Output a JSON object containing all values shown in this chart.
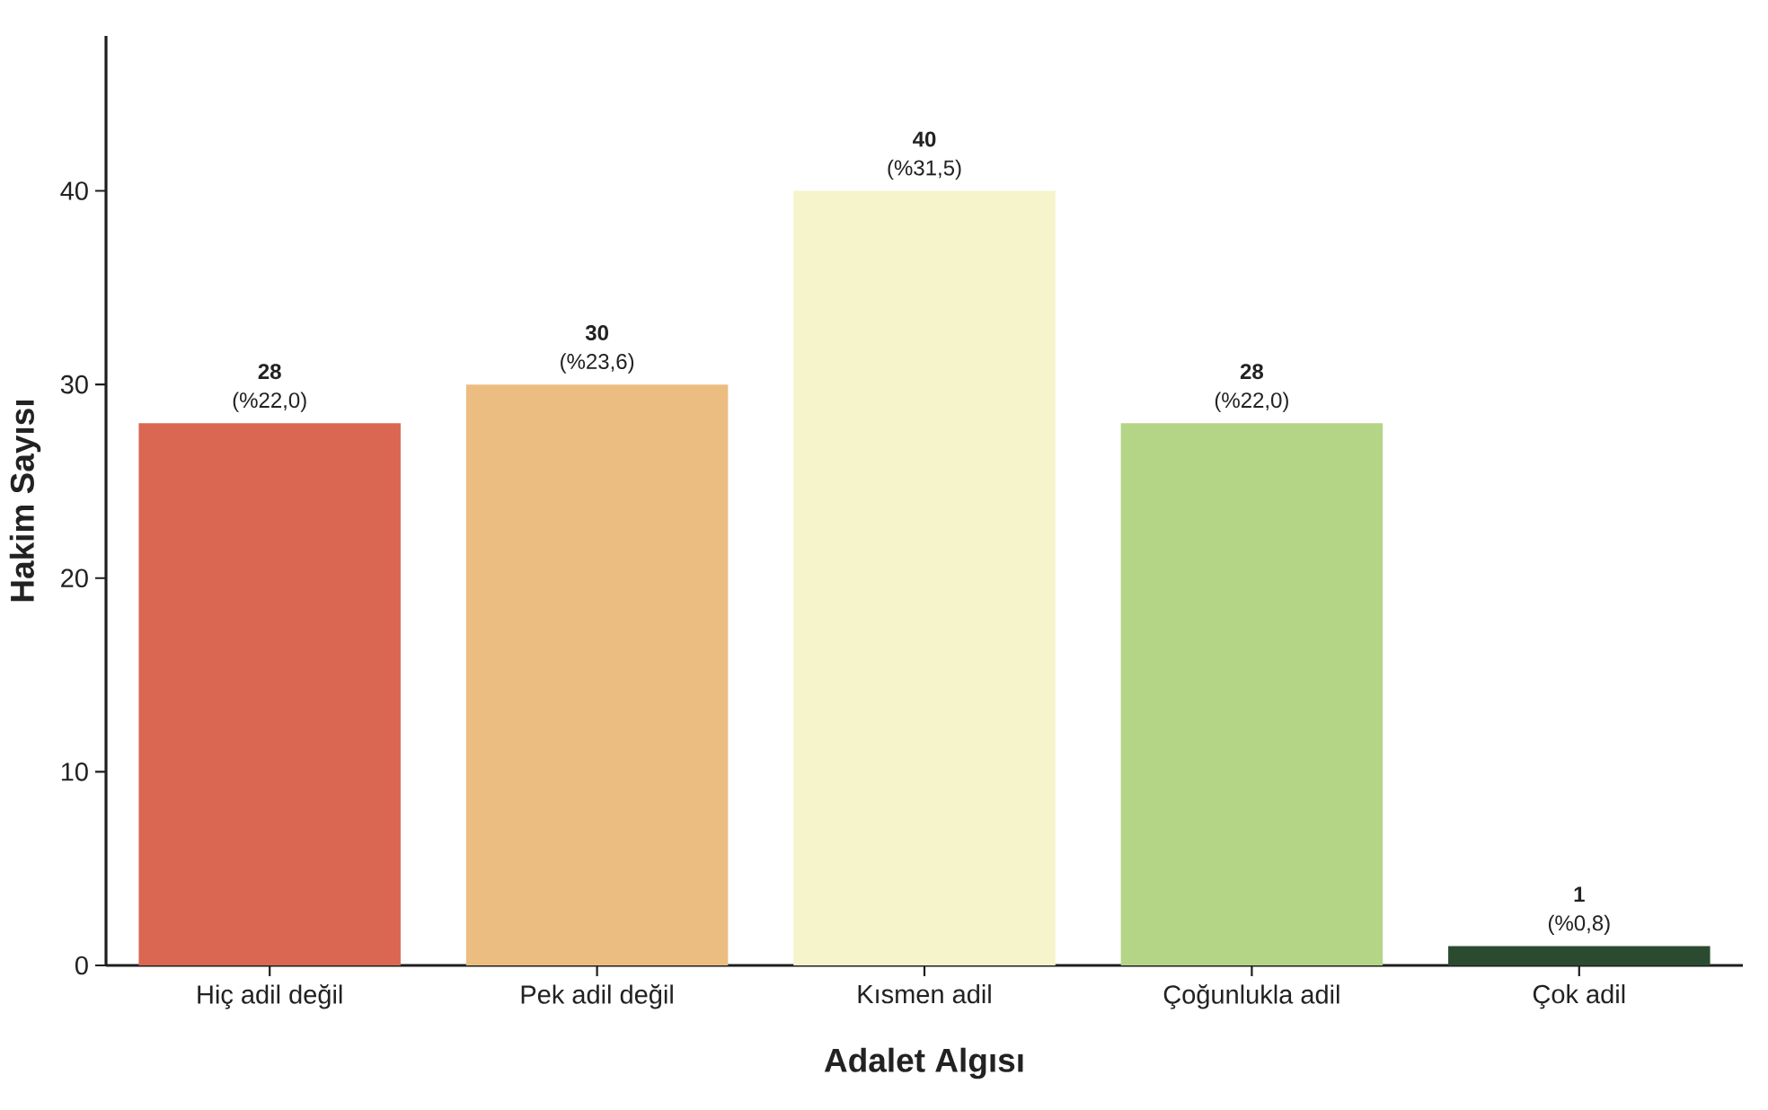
{
  "chart_data": {
    "type": "bar",
    "xlabel": "Adalet Algısı",
    "ylabel": "Hakim Sayısı",
    "categories": [
      "Hiç adil değil",
      "Pek adil değil",
      "Kısmen adil",
      "Çoğunlukla adil",
      "Çok adil"
    ],
    "values": [
      28,
      30,
      40,
      28,
      1
    ],
    "colors": [
      "#d96751",
      "#ecbd80",
      "#f6f4cb",
      "#b4d585",
      "#2a4b30"
    ],
    "value_labels": [
      "**28** (%22,0)",
      "**30** (%23,6)",
      "**40** (%31,5)",
      "**28** (%22,0)",
      "**1** (%0,8)"
    ],
    "ylim": [
      0,
      48
    ],
    "yticks": [
      0,
      10,
      20,
      30,
      40
    ]
  }
}
